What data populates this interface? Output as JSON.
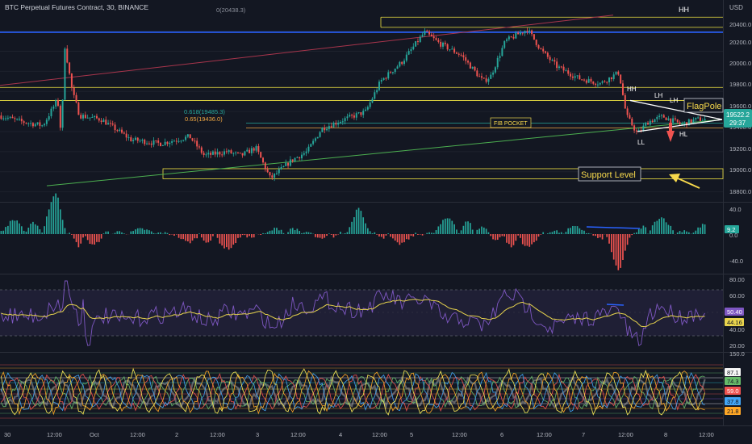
{
  "header": {
    "title": "BTC Perpetual Futures Contract, 30, BINANCE",
    "currency": "USD"
  },
  "price_panel": {
    "y_ticks": [
      "20400.0",
      "20200.0",
      "20000.0",
      "19800.0",
      "19600.0",
      "19400.0",
      "19200.0",
      "19000.0",
      "18800.0"
    ],
    "last_price": "19522.2",
    "countdown": "29:37",
    "fib_1": "0(20438.3)",
    "fib_2": "0.618(19485.3)",
    "fib_3": "0.65(19436.0)",
    "labels": {
      "hh_top": "HH",
      "hh_mid": "HH",
      "lh_1": "LH",
      "lh_2": "LH",
      "ll": "LL",
      "hl": "HL",
      "flagpole": "FlagPole",
      "fib_pocket": "FIB POCKET",
      "support": "Support Level"
    }
  },
  "macd_panel": {
    "y_ticks": [
      "40.0",
      "0.0",
      "-40.0"
    ],
    "current_value": "9.2"
  },
  "rsi_panel": {
    "y_ticks": [
      "80.00",
      "60.00",
      "40.00",
      "20.00"
    ],
    "value_1": "50.40",
    "value_2": "44.16"
  },
  "osc_panel": {
    "top_tick": "150.0",
    "badges": [
      "87.1",
      "74.3",
      "59.0",
      "37.8",
      "21.8"
    ]
  },
  "x_axis": {
    "labels": [
      "30",
      "12:00",
      "Oct",
      "12:00",
      "2",
      "12:00",
      "3",
      "12:00",
      "4",
      "12:00",
      "5",
      "12:00",
      "6",
      "12:00",
      "7",
      "12:00",
      "8",
      "12:00"
    ]
  },
  "colors": {
    "background": "#131722",
    "up": "#26a69a",
    "down": "#ef5350",
    "yellow_line": "#f0e442",
    "blue_line": "#2962ff",
    "red_trend": "#a8354c",
    "green_trend": "#4caf50",
    "rsi_line": "#7e57c2",
    "rsi_ma": "#e8d44d",
    "annotation": "#f7d94c"
  },
  "chart_data": [
    {
      "type": "candlestick",
      "title": "BTC Perpetual Futures Contract, 30, BINANCE",
      "ylim": [
        18700,
        20550
      ],
      "x_tick_labels": [
        "30",
        "12:00",
        "Oct",
        "12:00",
        "2",
        "12:00",
        "3",
        "12:00",
        "4",
        "12:00",
        "5",
        "12:00",
        "6",
        "12:00",
        "7",
        "12:00",
        "8",
        "12:00"
      ],
      "price_path_keypoints": [
        [
          0,
          19560
        ],
        [
          0.03,
          19500
        ],
        [
          0.06,
          19460
        ],
        [
          0.08,
          19720
        ],
        [
          0.085,
          19360
        ],
        [
          0.09,
          20250
        ],
        [
          0.1,
          19800
        ],
        [
          0.11,
          19560
        ],
        [
          0.14,
          19520
        ],
        [
          0.18,
          19320
        ],
        [
          0.22,
          19280
        ],
        [
          0.26,
          19350
        ],
        [
          0.28,
          19160
        ],
        [
          0.31,
          19200
        ],
        [
          0.33,
          19160
        ],
        [
          0.35,
          19240
        ],
        [
          0.37,
          18930
        ],
        [
          0.4,
          19120
        ],
        [
          0.42,
          19200
        ],
        [
          0.44,
          19430
        ],
        [
          0.47,
          19520
        ],
        [
          0.5,
          19600
        ],
        [
          0.52,
          19900
        ],
        [
          0.55,
          20100
        ],
        [
          0.58,
          20390
        ],
        [
          0.6,
          20280
        ],
        [
          0.63,
          20160
        ],
        [
          0.66,
          19900
        ],
        [
          0.67,
          19950
        ],
        [
          0.69,
          20300
        ],
        [
          0.72,
          20420
        ],
        [
          0.74,
          20200
        ],
        [
          0.76,
          20050
        ],
        [
          0.79,
          19930
        ],
        [
          0.82,
          19880
        ],
        [
          0.845,
          19990
        ],
        [
          0.855,
          19560
        ],
        [
          0.87,
          19380
        ],
        [
          0.885,
          19500
        ],
        [
          0.905,
          19550
        ],
        [
          0.93,
          19470
        ],
        [
          0.95,
          19520
        ],
        [
          0.962,
          19522
        ]
      ],
      "last_price": 19522.2,
      "horizontal_levels": [
        20420,
        20380,
        19840,
        19710,
        19485.3,
        19436.0,
        19030,
        18930
      ],
      "fibonacci": [
        {
          "label": "0",
          "value": 20438.3
        },
        {
          "label": "0.618",
          "value": 19485.3
        },
        {
          "label": "0.65",
          "value": 19436.0
        }
      ],
      "annotations": [
        "HH",
        "HH",
        "LH",
        "LH",
        "LL",
        "HL",
        "FlagPole",
        "FIB POCKET",
        "Support Level"
      ]
    },
    {
      "type": "bar",
      "ylim": [
        -50,
        50
      ],
      "y_tick_labels": [
        "40.0",
        "0.0",
        "-40.0"
      ],
      "current_value": 9.2
    },
    {
      "type": "line",
      "ylim": [
        15,
        85
      ],
      "y_tick_labels": [
        "80.00",
        "60.00",
        "40.00",
        "20.00"
      ],
      "band": [
        30,
        70
      ],
      "series": [
        {
          "values": [
            50.4
          ]
        },
        {
          "values": [
            44.16
          ]
        }
      ]
    },
    {
      "type": "line",
      "ylim": [
        0,
        150
      ],
      "y_tick_labels": [
        "150.0"
      ],
      "series_current_values": [
        87.1,
        74.3,
        59.0,
        37.8,
        21.8
      ]
    }
  ]
}
